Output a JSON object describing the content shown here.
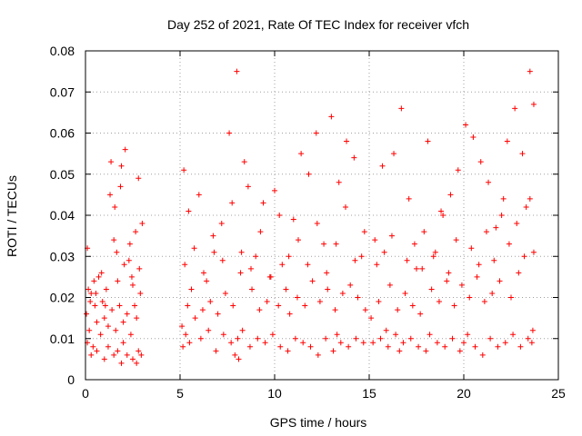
{
  "chart_data": {
    "type": "scatter",
    "title": "Day 252 of 2021, Rate Of TEC Index for receiver vfch",
    "xlabel": "GPS time / hours",
    "ylabel": "ROTI / TECUs",
    "xlim": [
      0,
      25
    ],
    "ylim": [
      0,
      0.08
    ],
    "x_ticks": [
      "0",
      "5",
      "10",
      "15",
      "20",
      "25"
    ],
    "y_ticks": [
      "0",
      "0.01",
      "0.02",
      "0.03",
      "0.04",
      "0.05",
      "0.06",
      "0.07",
      "0.08"
    ],
    "grid": true,
    "marker": "+",
    "color": "#ff0000",
    "series": [
      {
        "x": [
          0.05,
          0.1,
          0.2,
          0.3,
          0.4,
          0.5,
          0.6,
          0.7,
          0.8,
          0.9,
          1.0,
          1.1,
          1.2,
          1.3,
          1.4,
          1.5,
          1.6,
          1.7,
          1.8,
          1.9,
          2.0,
          2.1,
          2.2,
          2.3,
          2.4,
          2.5,
          2.6,
          2.7,
          2.8,
          2.9,
          3.0,
          0.1,
          0.3,
          0.6,
          1.0,
          1.2,
          1.5,
          1.7,
          1.9,
          2.0,
          2.2,
          2.5,
          2.7,
          2.8,
          2.95,
          0.15,
          0.25,
          0.45,
          0.55,
          0.85,
          1.05,
          1.35,
          1.55,
          1.65,
          1.85,
          2.05,
          2.35,
          2.45,
          2.65,
          2.85,
          5.1,
          5.2,
          5.4,
          5.6,
          5.8,
          6.0,
          6.2,
          6.4,
          6.6,
          6.8,
          7.0,
          7.2,
          7.4,
          7.6,
          7.8,
          8.0,
          8.2,
          8.4,
          8.6,
          8.8,
          9.0,
          9.2,
          9.4,
          9.6,
          9.8,
          10.0,
          10.2,
          10.4,
          10.6,
          10.8,
          11.0,
          11.2,
          11.4,
          11.6,
          11.8,
          12.0,
          12.2,
          12.4,
          12.6,
          12.8,
          13.0,
          13.2,
          13.4,
          13.6,
          13.8,
          14.0,
          14.2,
          14.4,
          14.6,
          14.8,
          5.15,
          5.3,
          5.5,
          6.1,
          6.5,
          6.9,
          7.3,
          7.7,
          7.9,
          8.05,
          8.1,
          8.3,
          8.7,
          9.1,
          9.5,
          9.9,
          10.3,
          10.7,
          11.1,
          11.5,
          11.9,
          12.3,
          12.7,
          13.1,
          13.5,
          13.3,
          13.9,
          14.3,
          14.7,
          5.25,
          5.45,
          5.75,
          6.25,
          6.75,
          7.25,
          7.75,
          8.25,
          8.75,
          9.25,
          9.75,
          10.25,
          10.75,
          11.25,
          11.75,
          12.25,
          12.75,
          13.25,
          13.75,
          14.25,
          14.75,
          15.1,
          15.3,
          15.5,
          15.7,
          15.9,
          16.1,
          16.3,
          16.5,
          16.7,
          16.9,
          17.1,
          17.3,
          17.5,
          17.7,
          17.9,
          18.1,
          18.3,
          18.5,
          18.7,
          18.9,
          19.1,
          19.3,
          19.5,
          19.7,
          19.9,
          20.1,
          20.3,
          20.5,
          20.7,
          20.9,
          21.1,
          21.3,
          21.5,
          21.7,
          21.9,
          22.1,
          22.3,
          22.5,
          22.7,
          22.9,
          23.1,
          23.3,
          23.5,
          23.7,
          15.2,
          15.6,
          16.0,
          16.4,
          16.6,
          16.8,
          17.2,
          17.6,
          18.0,
          18.2,
          18.6,
          19.0,
          19.4,
          19.8,
          20.0,
          20.2,
          20.6,
          21.0,
          21.4,
          21.8,
          22.2,
          22.6,
          23.0,
          23.4,
          23.6,
          23.65,
          15.4,
          15.8,
          16.2,
          17.0,
          17.4,
          17.8,
          18.4,
          18.8,
          19.2,
          19.6,
          20.4,
          20.8,
          21.2,
          21.6,
          22.0,
          22.4,
          22.8,
          23.2,
          23.5,
          23.7
        ],
        "y": [
          0.016,
          0.032,
          0.012,
          0.021,
          0.008,
          0.018,
          0.014,
          0.025,
          0.011,
          0.019,
          0.015,
          0.022,
          0.013,
          0.045,
          0.017,
          0.034,
          0.012,
          0.024,
          0.018,
          0.052,
          0.014,
          0.056,
          0.016,
          0.029,
          0.011,
          0.023,
          0.018,
          0.015,
          0.049,
          0.021,
          0.038,
          0.009,
          0.006,
          0.007,
          0.005,
          0.008,
          0.006,
          0.007,
          0.004,
          0.009,
          0.006,
          0.005,
          0.004,
          0.007,
          0.006,
          0.022,
          0.019,
          0.024,
          0.021,
          0.026,
          0.018,
          0.053,
          0.042,
          0.031,
          0.047,
          0.028,
          0.033,
          0.025,
          0.036,
          0.027,
          0.013,
          0.051,
          0.018,
          0.022,
          0.015,
          0.045,
          0.017,
          0.024,
          0.019,
          0.031,
          0.016,
          0.038,
          0.021,
          0.06,
          0.018,
          0.075,
          0.026,
          0.053,
          0.047,
          0.022,
          0.03,
          0.017,
          0.043,
          0.019,
          0.025,
          0.046,
          0.018,
          0.028,
          0.022,
          0.016,
          0.039,
          0.02,
          0.055,
          0.018,
          0.05,
          0.024,
          0.06,
          0.019,
          0.033,
          0.022,
          0.064,
          0.017,
          0.048,
          0.021,
          0.058,
          0.023,
          0.054,
          0.02,
          0.03,
          0.017,
          0.008,
          0.011,
          0.009,
          0.01,
          0.012,
          0.007,
          0.011,
          0.009,
          0.006,
          0.01,
          0.005,
          0.012,
          0.008,
          0.01,
          0.009,
          0.011,
          0.008,
          0.007,
          0.01,
          0.009,
          0.008,
          0.006,
          0.01,
          0.007,
          0.009,
          0.011,
          0.008,
          0.01,
          0.009,
          0.028,
          0.041,
          0.032,
          0.026,
          0.035,
          0.029,
          0.043,
          0.031,
          0.027,
          0.036,
          0.025,
          0.04,
          0.03,
          0.034,
          0.028,
          0.038,
          0.026,
          0.033,
          0.042,
          0.029,
          0.036,
          0.015,
          0.034,
          0.019,
          0.052,
          0.012,
          0.023,
          0.055,
          0.017,
          0.066,
          0.021,
          0.044,
          0.018,
          0.027,
          0.016,
          0.036,
          0.058,
          0.022,
          0.031,
          0.019,
          0.04,
          0.024,
          0.045,
          0.018,
          0.051,
          0.023,
          0.062,
          0.02,
          0.059,
          0.025,
          0.053,
          0.019,
          0.048,
          0.021,
          0.037,
          0.024,
          0.044,
          0.058,
          0.02,
          0.066,
          0.026,
          0.055,
          0.042,
          0.075,
          0.067,
          0.009,
          0.01,
          0.008,
          0.011,
          0.007,
          0.009,
          0.01,
          0.008,
          0.007,
          0.011,
          0.009,
          0.008,
          0.01,
          0.007,
          0.009,
          0.011,
          0.008,
          0.006,
          0.01,
          0.008,
          0.009,
          0.011,
          0.008,
          0.01,
          0.009,
          0.012,
          0.028,
          0.031,
          0.035,
          0.029,
          0.033,
          0.027,
          0.03,
          0.041,
          0.026,
          0.034,
          0.032,
          0.028,
          0.036,
          0.029,
          0.04,
          0.033,
          0.038,
          0.03,
          0.044,
          0.031
        ]
      }
    ]
  }
}
